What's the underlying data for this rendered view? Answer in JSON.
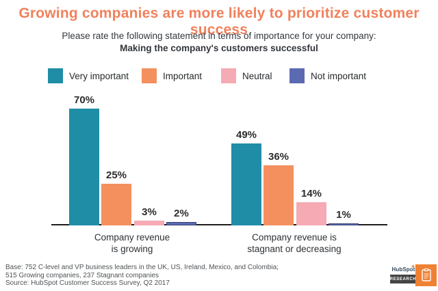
{
  "title": "Growing companies are more likely to prioritize customer success",
  "subtitle": {
    "line1": "Please rate the following statement in terms of importance for your company:",
    "line2": "Making the company's customers successful"
  },
  "legend": [
    {
      "label": "Very important",
      "color": "#1f8da6"
    },
    {
      "label": "Important",
      "color": "#f3905e"
    },
    {
      "label": "Neutral",
      "color": "#f5aab4"
    },
    {
      "label": "Not important",
      "color": "#5c6ab1"
    }
  ],
  "chart_data": {
    "type": "bar",
    "categories": [
      "Company revenue is growing",
      "Company revenue is stagnant or decreasing"
    ],
    "series": [
      {
        "name": "Very important",
        "color": "#1f8da6",
        "values": [
          70,
          49
        ]
      },
      {
        "name": "Important",
        "color": "#f3905e",
        "values": [
          25,
          36
        ]
      },
      {
        "name": "Neutral",
        "color": "#f5aab4",
        "values": [
          3,
          14
        ]
      },
      {
        "name": "Not important",
        "color": "#5c6ab1",
        "values": [
          2,
          1
        ]
      }
    ],
    "value_label_format": "percent",
    "ylim": [
      0,
      70
    ],
    "grid": false,
    "legend_position": "top",
    "value_labels": [
      "70%",
      "25%",
      "3%",
      "2%",
      "49%",
      "36%",
      "14%",
      "1%"
    ]
  },
  "group_labels": [
    {
      "line1": "Company revenue",
      "line2": "is growing"
    },
    {
      "line1": "Company revenue is",
      "line2": "stagnant or decreasing"
    }
  ],
  "footer": {
    "line1": "Base: 752 C-level and VP business leaders in the UK, US, Ireland, Mexico, and Colombia;",
    "line2": "515 Growing companies, 237 Stagnant companies",
    "line3": "Source: HubSpot Customer Success Survey, Q2 2017"
  },
  "logo": {
    "brand": "HubSpot",
    "sub_label": "RESEARCH",
    "icon": "clipboard-icon",
    "orange": "#ef8133",
    "dark": "#454545"
  },
  "colors": {
    "title": "#f0815c",
    "axis": "#1c1c1c",
    "not_important_border": "#3a4277"
  }
}
